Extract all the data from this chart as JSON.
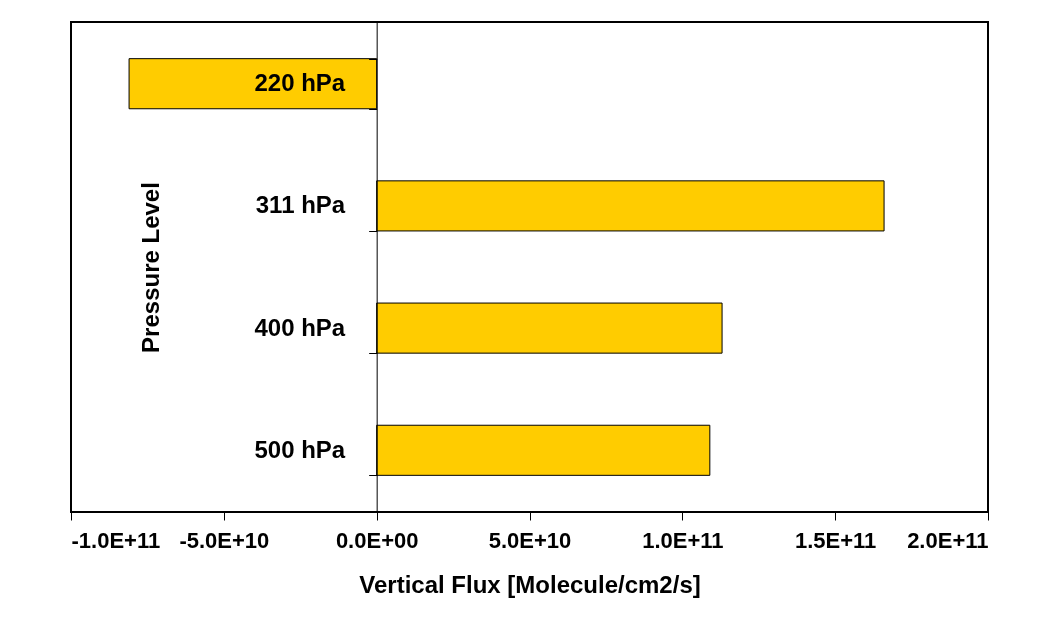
{
  "chart_data": {
    "type": "bar",
    "orientation": "horizontal",
    "xlabel": "Vertical Flux [Molecule/cm2/s]",
    "ylabel": "Pressure Level",
    "categories": [
      "220 hPa",
      "311 hPa",
      "400 hPa",
      "500 hPa"
    ],
    "values": [
      -81000000000.0,
      166000000000.0,
      113000000000.0,
      109000000000.0
    ],
    "color": "#ffcc00",
    "xlim": [
      -100000000000.0,
      200000000000.0
    ],
    "xticks": [
      {
        "value": -100000000000.0,
        "label": "-1.0E+11"
      },
      {
        "value": -50000000000.0,
        "label": "-5.0E+10"
      },
      {
        "value": 0,
        "label": "0.0E+00"
      },
      {
        "value": 50000000000.0,
        "label": "5.0E+10"
      },
      {
        "value": 100000000000.0,
        "label": "1.0E+11"
      },
      {
        "value": 150000000000.0,
        "label": "1.5E+11"
      },
      {
        "value": 200000000000.0,
        "label": "2.0E+11"
      }
    ]
  }
}
